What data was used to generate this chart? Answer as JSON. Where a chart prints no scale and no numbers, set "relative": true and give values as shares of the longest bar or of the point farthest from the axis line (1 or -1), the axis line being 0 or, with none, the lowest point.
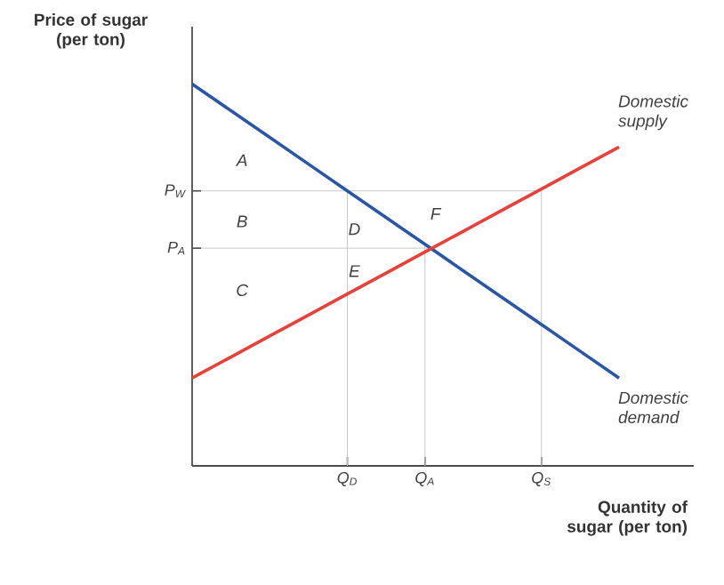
{
  "chart_data": {
    "type": "line",
    "xlabel": "Quantity of sugar (per ton)",
    "ylabel": "Price of sugar (per ton)",
    "relative": true,
    "marker": "none",
    "line_style": "solid",
    "grid": "x",
    "categories": [
      null,
      null,
      null,
      null,
      "Q$_{D}$",
      null,
      "Q$_{A}$",
      null,
      null,
      "Q$_{S}$",
      null,
      null
    ],
    "series": [
      {
        "name": "Domestic demand",
        "color": "#2b56a6",
        "values": [
          1,
          0.93,
          0.86,
          0.79,
          0.72,
          0.65,
          0.58,
          0.51,
          0.44,
          0.37,
          0.3,
          0.23
        ]
      },
      {
        "name": "Domestic supply",
        "color": "#e8413c",
        "values": [
          0.23,
          0.285,
          0.34,
          0.395,
          0.45,
          0.505,
          0.56,
          0.615,
          0.67,
          0.725,
          0.78,
          0.835
        ]
      }
    ],
    "ref_lines": [
      {
        "axis": "y",
        "value": 0.72,
        "label": "P$_{W}$",
        "color": "#c8c8c8"
      },
      {
        "axis": "y",
        "value": 0.57,
        "label": "P$_{A}$",
        "color": "#c8c8c8"
      }
    ],
    "annotations": [
      "A",
      "B",
      "C",
      "D",
      "E",
      "F"
    ]
  }
}
